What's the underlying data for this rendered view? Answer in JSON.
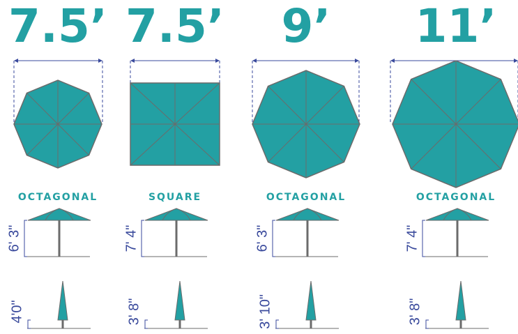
{
  "umbrellas": [
    {
      "size": "7.5’",
      "shape": "OCTAGONAL",
      "open_height": "6' 3\"",
      "closed_height": "4'0\""
    },
    {
      "size": "7.5’",
      "shape": "SQUARE",
      "open_height": "7' 4\"",
      "closed_height": "3' 8\""
    },
    {
      "size": "9’",
      "shape": "OCTAGONAL",
      "open_height": "6' 3\"",
      "closed_height": "3' 10\""
    },
    {
      "size": "11’",
      "shape": "OCTAGONAL",
      "open_height": "7' 4\"",
      "closed_height": "3' 8\""
    }
  ]
}
